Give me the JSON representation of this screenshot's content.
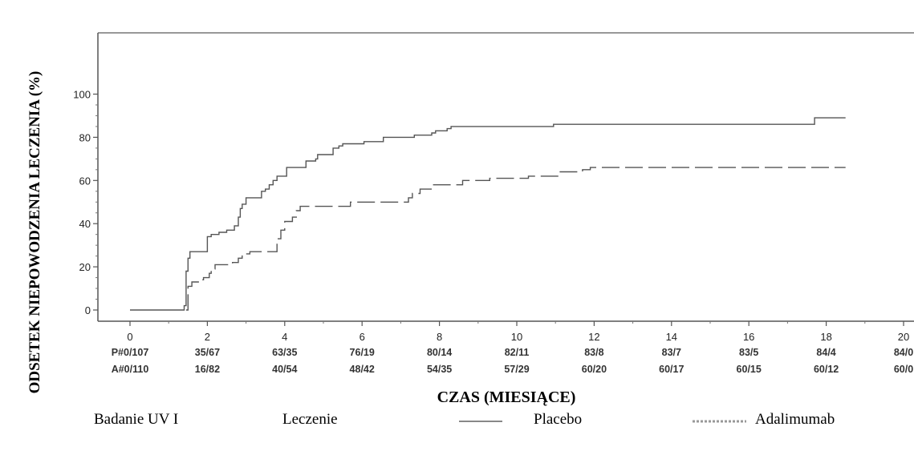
{
  "chart_data": {
    "type": "line",
    "ylabel": "ODSETEK NIEPOWODZENIA LECZENIA (%)",
    "xlabel": "CZAS (MIESIĄCE)",
    "xlim": [
      0,
      20
    ],
    "ylim": [
      0,
      100
    ],
    "x_ticks": [
      "0",
      "2",
      "4",
      "6",
      "8",
      "10",
      "12",
      "14",
      "16",
      "18",
      "20"
    ],
    "y_ticks": [
      "0",
      "20",
      "40",
      "60",
      "80",
      "100"
    ],
    "grid": false,
    "at_risk_rows": [
      {
        "label": "P#0/107",
        "values": [
          "35/67",
          "63/35",
          "76/19",
          "80/14",
          "82/11",
          "83/8",
          "83/7",
          "83/5",
          "84/4",
          "84/0"
        ]
      },
      {
        "label": "A#0/110",
        "values": [
          "16/82",
          "40/54",
          "48/42",
          "54/35",
          "57/29",
          "60/20",
          "60/17",
          "60/15",
          "60/12",
          "60/0"
        ]
      }
    ],
    "series": [
      {
        "name": "Placebo",
        "style": "solid",
        "color": "#555555",
        "points": [
          [
            0,
            0
          ],
          [
            1.35,
            0
          ],
          [
            1.4,
            2
          ],
          [
            1.45,
            18
          ],
          [
            1.5,
            24
          ],
          [
            1.55,
            27
          ],
          [
            1.95,
            27
          ],
          [
            2,
            34
          ],
          [
            2.1,
            35
          ],
          [
            2.3,
            36
          ],
          [
            2.5,
            37
          ],
          [
            2.7,
            39
          ],
          [
            2.8,
            43
          ],
          [
            2.85,
            47
          ],
          [
            2.9,
            49
          ],
          [
            3,
            52
          ],
          [
            3.3,
            52
          ],
          [
            3.4,
            55
          ],
          [
            3.5,
            56
          ],
          [
            3.6,
            58
          ],
          [
            3.7,
            60
          ],
          [
            3.8,
            62
          ],
          [
            4,
            62
          ],
          [
            4.05,
            66
          ],
          [
            4.5,
            66
          ],
          [
            4.55,
            69
          ],
          [
            4.8,
            70
          ],
          [
            4.85,
            72
          ],
          [
            5.2,
            72
          ],
          [
            5.25,
            75
          ],
          [
            5.4,
            76
          ],
          [
            5.5,
            77
          ],
          [
            6,
            77
          ],
          [
            6.05,
            78
          ],
          [
            6.5,
            78
          ],
          [
            6.55,
            80
          ],
          [
            7.3,
            80
          ],
          [
            7.35,
            81
          ],
          [
            7.8,
            82
          ],
          [
            7.9,
            83
          ],
          [
            8.2,
            84
          ],
          [
            8.3,
            85
          ],
          [
            10.9,
            85
          ],
          [
            10.95,
            86
          ],
          [
            17.6,
            86
          ],
          [
            17.7,
            89
          ],
          [
            18.5,
            89
          ]
        ]
      },
      {
        "name": "Adalimumab",
        "style": "dashed",
        "color": "#555555",
        "points": [
          [
            1.45,
            0
          ],
          [
            1.5,
            11
          ],
          [
            1.6,
            13
          ],
          [
            1.8,
            14
          ],
          [
            1.9,
            15
          ],
          [
            2.05,
            17
          ],
          [
            2.1,
            19
          ],
          [
            2.2,
            21
          ],
          [
            2.6,
            21
          ],
          [
            2.65,
            22
          ],
          [
            2.8,
            24
          ],
          [
            2.9,
            25
          ],
          [
            3,
            26
          ],
          [
            3.1,
            27
          ],
          [
            3.7,
            27
          ],
          [
            3.8,
            33
          ],
          [
            3.9,
            37
          ],
          [
            4,
            41
          ],
          [
            4.2,
            43
          ],
          [
            4.3,
            46
          ],
          [
            4.4,
            48
          ],
          [
            5.6,
            48
          ],
          [
            5.7,
            50
          ],
          [
            7.1,
            50
          ],
          [
            7.2,
            52
          ],
          [
            7.3,
            54
          ],
          [
            7.5,
            56
          ],
          [
            7.8,
            58
          ],
          [
            8.5,
            58
          ],
          [
            8.6,
            60
          ],
          [
            9.2,
            60
          ],
          [
            9.3,
            61
          ],
          [
            10.2,
            61
          ],
          [
            10.3,
            62
          ],
          [
            11,
            62
          ],
          [
            11.1,
            64
          ],
          [
            11.6,
            64
          ],
          [
            11.7,
            65
          ],
          [
            11.9,
            66
          ],
          [
            18.5,
            66
          ]
        ]
      }
    ],
    "legend": {
      "study_label": "Badanie UV I",
      "treatment_label": "Leczenie",
      "placement": "bottom",
      "entries": [
        "Placebo",
        "Adalimumab"
      ]
    }
  }
}
